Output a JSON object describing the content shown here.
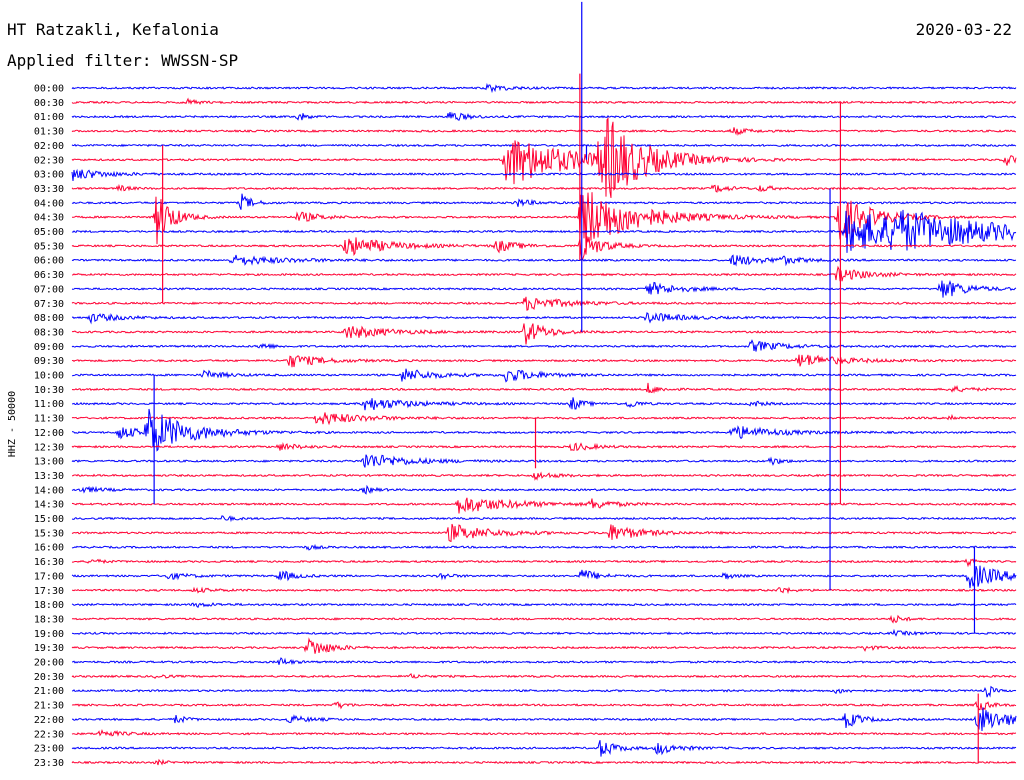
{
  "header": {
    "station": "HT Ratzakli, Kefalonia",
    "filter": "Applied filter: WWSSN-SP",
    "date": "2020-03-22"
  },
  "chart_data": {
    "type": "line",
    "title": "HT Ratzakli, Kefalonia",
    "subtitle": "Applied filter: WWSSN-SP",
    "date": "2020-03-22",
    "ylabel": "HHZ - 50000",
    "colors": [
      "#0000ff",
      "#ff0033"
    ],
    "trace_labels": [
      "00:00",
      "00:30",
      "01:00",
      "01:30",
      "02:00",
      "02:30",
      "03:00",
      "03:30",
      "04:00",
      "04:30",
      "05:00",
      "05:30",
      "06:00",
      "06:30",
      "07:00",
      "07:30",
      "08:00",
      "08:30",
      "09:00",
      "09:30",
      "10:00",
      "10:30",
      "11:00",
      "11:30",
      "12:00",
      "12:30",
      "13:00",
      "13:30",
      "14:00",
      "14:30",
      "15:00",
      "15:30",
      "16:00",
      "16:30",
      "17:00",
      "17:30",
      "18:00",
      "18:30",
      "19:00",
      "19:30",
      "20:00",
      "20:30",
      "21:00",
      "21:30",
      "22:00",
      "22:30",
      "23:00",
      "23:30"
    ],
    "x_unit": "fraction of 30-minute line",
    "events": [
      {
        "trace": 1,
        "x": 0.12,
        "amp": 0.5,
        "dur": 0.01
      },
      {
        "trace": 0,
        "x": 0.44,
        "amp": 0.5,
        "dur": 0.02
      },
      {
        "trace": 2,
        "x": 0.4,
        "amp": 0.8,
        "dur": 0.015
      },
      {
        "trace": 2,
        "x": 0.24,
        "amp": 0.7,
        "dur": 0.008
      },
      {
        "trace": 3,
        "x": 0.7,
        "amp": 0.5,
        "dur": 0.015
      },
      {
        "trace": 5,
        "x": 0.46,
        "amp": 4.0,
        "dur": 0.06
      },
      {
        "trace": 5,
        "x": 0.56,
        "amp": 6.0,
        "dur": 0.04
      },
      {
        "trace": 5,
        "x": 0.57,
        "amp": 1.0,
        "dur": 0.01
      },
      {
        "trace": 5,
        "x": 0.99,
        "amp": 0.8,
        "dur": 0.02
      },
      {
        "trace": 6,
        "x": 0.0,
        "amp": 0.9,
        "dur": 0.03
      },
      {
        "trace": 7,
        "x": 0.05,
        "amp": 0.4,
        "dur": 0.01
      },
      {
        "trace": 7,
        "x": 0.68,
        "amp": 0.6,
        "dur": 0.015
      },
      {
        "trace": 7,
        "x": 0.73,
        "amp": 0.5,
        "dur": 0.01
      },
      {
        "trace": 8,
        "x": 0.18,
        "amp": 1.2,
        "dur": 0.01
      },
      {
        "trace": 8,
        "x": 0.47,
        "amp": 0.6,
        "dur": 0.015
      },
      {
        "trace": 9,
        "x": 0.09,
        "amp": 4.0,
        "dur": 0.015
      },
      {
        "trace": 9,
        "x": 0.24,
        "amp": 0.8,
        "dur": 0.02
      },
      {
        "trace": 9,
        "x": 0.54,
        "amp": 5.0,
        "dur": 0.05
      },
      {
        "trace": 9,
        "x": 0.81,
        "amp": 4.0,
        "dur": 0.03
      },
      {
        "trace": 10,
        "x": 0.82,
        "amp": 3.0,
        "dur": 0.12
      },
      {
        "trace": 10,
        "x": 0.87,
        "amp": 1.5,
        "dur": 0.08
      },
      {
        "trace": 11,
        "x": 0.29,
        "amp": 1.5,
        "dur": 0.04
      },
      {
        "trace": 11,
        "x": 0.45,
        "amp": 0.9,
        "dur": 0.02
      },
      {
        "trace": 11,
        "x": 0.54,
        "amp": 2.0,
        "dur": 0.02
      },
      {
        "trace": 12,
        "x": 0.17,
        "amp": 0.7,
        "dur": 0.05
      },
      {
        "trace": 12,
        "x": 0.7,
        "amp": 0.8,
        "dur": 0.03
      },
      {
        "trace": 12,
        "x": 0.75,
        "amp": 0.5,
        "dur": 0.02
      },
      {
        "trace": 13,
        "x": 0.81,
        "amp": 1.0,
        "dur": 0.03
      },
      {
        "trace": 14,
        "x": 0.61,
        "amp": 1.0,
        "dur": 0.03
      },
      {
        "trace": 14,
        "x": 0.92,
        "amp": 1.5,
        "dur": 0.025
      },
      {
        "trace": 15,
        "x": 0.48,
        "amp": 1.0,
        "dur": 0.04
      },
      {
        "trace": 16,
        "x": 0.02,
        "amp": 0.6,
        "dur": 0.03
      },
      {
        "trace": 16,
        "x": 0.61,
        "amp": 0.8,
        "dur": 0.03
      },
      {
        "trace": 17,
        "x": 0.29,
        "amp": 1.0,
        "dur": 0.04
      },
      {
        "trace": 17,
        "x": 0.48,
        "amp": 1.8,
        "dur": 0.02
      },
      {
        "trace": 18,
        "x": 0.2,
        "amp": 0.5,
        "dur": 0.01
      },
      {
        "trace": 18,
        "x": 0.72,
        "amp": 0.8,
        "dur": 0.03
      },
      {
        "trace": 19,
        "x": 0.23,
        "amp": 1.0,
        "dur": 0.03
      },
      {
        "trace": 19,
        "x": 0.77,
        "amp": 1.0,
        "dur": 0.04
      },
      {
        "trace": 20,
        "x": 0.14,
        "amp": 0.6,
        "dur": 0.02
      },
      {
        "trace": 20,
        "x": 0.35,
        "amp": 1.0,
        "dur": 0.03
      },
      {
        "trace": 20,
        "x": 0.46,
        "amp": 1.0,
        "dur": 0.03
      },
      {
        "trace": 21,
        "x": 0.61,
        "amp": 0.8,
        "dur": 0.01
      },
      {
        "trace": 21,
        "x": 0.93,
        "amp": 0.4,
        "dur": 0.02
      },
      {
        "trace": 22,
        "x": 0.31,
        "amp": 1.0,
        "dur": 0.04
      },
      {
        "trace": 22,
        "x": 0.53,
        "amp": 1.0,
        "dur": 0.01
      },
      {
        "trace": 22,
        "x": 0.59,
        "amp": 0.6,
        "dur": 0.01
      },
      {
        "trace": 22,
        "x": 0.72,
        "amp": 0.5,
        "dur": 0.01
      },
      {
        "trace": 23,
        "x": 0.26,
        "amp": 1.0,
        "dur": 0.04
      },
      {
        "trace": 23,
        "x": 0.93,
        "amp": 0.6,
        "dur": 0.005
      },
      {
        "trace": 24,
        "x": 0.05,
        "amp": 1.0,
        "dur": 0.02
      },
      {
        "trace": 24,
        "x": 0.08,
        "amp": 3.5,
        "dur": 0.04
      },
      {
        "trace": 24,
        "x": 0.7,
        "amp": 1.0,
        "dur": 0.04
      },
      {
        "trace": 25,
        "x": 0.22,
        "amp": 0.5,
        "dur": 0.02
      },
      {
        "trace": 25,
        "x": 0.53,
        "amp": 0.6,
        "dur": 0.02
      },
      {
        "trace": 26,
        "x": 0.31,
        "amp": 1.2,
        "dur": 0.04
      },
      {
        "trace": 26,
        "x": 0.74,
        "amp": 0.6,
        "dur": 0.01
      },
      {
        "trace": 27,
        "x": 0.49,
        "amp": 0.5,
        "dur": 0.02
      },
      {
        "trace": 28,
        "x": 0.01,
        "amp": 0.4,
        "dur": 0.02
      },
      {
        "trace": 28,
        "x": 0.31,
        "amp": 0.5,
        "dur": 0.01
      },
      {
        "trace": 29,
        "x": 0.41,
        "amp": 1.3,
        "dur": 0.05
      },
      {
        "trace": 29,
        "x": 0.55,
        "amp": 0.7,
        "dur": 0.02
      },
      {
        "trace": 30,
        "x": 0.16,
        "amp": 0.4,
        "dur": 0.01
      },
      {
        "trace": 31,
        "x": 0.4,
        "amp": 1.3,
        "dur": 0.04
      },
      {
        "trace": 31,
        "x": 0.57,
        "amp": 1.2,
        "dur": 0.03
      },
      {
        "trace": 32,
        "x": 0.25,
        "amp": 0.3,
        "dur": 0.01
      },
      {
        "trace": 33,
        "x": 0.02,
        "amp": 0.4,
        "dur": 0.01
      },
      {
        "trace": 33,
        "x": 0.95,
        "amp": 0.8,
        "dur": 0.005
      },
      {
        "trace": 34,
        "x": 0.1,
        "amp": 0.5,
        "dur": 0.02
      },
      {
        "trace": 34,
        "x": 0.22,
        "amp": 0.8,
        "dur": 0.015
      },
      {
        "trace": 34,
        "x": 0.39,
        "amp": 0.5,
        "dur": 0.01
      },
      {
        "trace": 34,
        "x": 0.54,
        "amp": 1.0,
        "dur": 0.015
      },
      {
        "trace": 34,
        "x": 0.69,
        "amp": 0.5,
        "dur": 0.01
      },
      {
        "trace": 34,
        "x": 0.95,
        "amp": 2.0,
        "dur": 0.03
      },
      {
        "trace": 35,
        "x": 0.13,
        "amp": 0.3,
        "dur": 0.02
      },
      {
        "trace": 35,
        "x": 0.75,
        "amp": 0.5,
        "dur": 0.01
      },
      {
        "trace": 36,
        "x": 0.13,
        "amp": 0.3,
        "dur": 0.02
      },
      {
        "trace": 37,
        "x": 0.87,
        "amp": 0.6,
        "dur": 0.01
      },
      {
        "trace": 38,
        "x": 0.87,
        "amp": 0.3,
        "dur": 0.02
      },
      {
        "trace": 39,
        "x": 0.25,
        "amp": 1.5,
        "dur": 0.02
      },
      {
        "trace": 39,
        "x": 0.84,
        "amp": 0.4,
        "dur": 0.01
      },
      {
        "trace": 40,
        "x": 0.22,
        "amp": 0.6,
        "dur": 0.01
      },
      {
        "trace": 41,
        "x": 0.09,
        "amp": 0.3,
        "dur": 0.01
      },
      {
        "trace": 41,
        "x": 0.36,
        "amp": 0.3,
        "dur": 0.01
      },
      {
        "trace": 42,
        "x": 0.81,
        "amp": 0.4,
        "dur": 0.01
      },
      {
        "trace": 42,
        "x": 0.97,
        "amp": 1.0,
        "dur": 0.005
      },
      {
        "trace": 43,
        "x": 0.28,
        "amp": 0.5,
        "dur": 0.01
      },
      {
        "trace": 43,
        "x": 0.96,
        "amp": 1.0,
        "dur": 0.01
      },
      {
        "trace": 44,
        "x": 0.11,
        "amp": 0.6,
        "dur": 0.01
      },
      {
        "trace": 44,
        "x": 0.23,
        "amp": 0.5,
        "dur": 0.02
      },
      {
        "trace": 44,
        "x": 0.82,
        "amp": 1.2,
        "dur": 0.015
      },
      {
        "trace": 44,
        "x": 0.96,
        "amp": 2.0,
        "dur": 0.03
      },
      {
        "trace": 45,
        "x": 0.03,
        "amp": 0.5,
        "dur": 0.02
      },
      {
        "trace": 46,
        "x": 0.56,
        "amp": 1.3,
        "dur": 0.015
      },
      {
        "trace": 46,
        "x": 0.62,
        "amp": 0.9,
        "dur": 0.02
      },
      {
        "trace": 47,
        "x": 0.09,
        "amp": 0.3,
        "dur": 0.01
      }
    ],
    "spikes": [
      {
        "trace": 4,
        "x": 0.545,
        "up": 0.0,
        "down": 1.0
      },
      {
        "trace": 5,
        "x": 0.538,
        "up": 6.0,
        "down": 7.0
      },
      {
        "trace": 8,
        "x": 0.54,
        "up": 14.0,
        "down": 9.0
      },
      {
        "trace": 8,
        "x": 0.803,
        "up": 1.0,
        "down": 27.0
      },
      {
        "trace": 9,
        "x": 0.814,
        "up": 8.0,
        "down": 20.0
      },
      {
        "trace": 9,
        "x": 0.096,
        "up": 5.0,
        "down": 6.0
      },
      {
        "trace": 24,
        "x": 0.087,
        "up": 4.0,
        "down": 5.0
      },
      {
        "trace": 25,
        "x": 0.491,
        "up": 2.0,
        "down": 1.5
      },
      {
        "trace": 34,
        "x": 0.956,
        "up": 2.0,
        "down": 4.0
      },
      {
        "trace": 43,
        "x": 0.96,
        "up": 0.8,
        "down": 4.0
      }
    ]
  }
}
